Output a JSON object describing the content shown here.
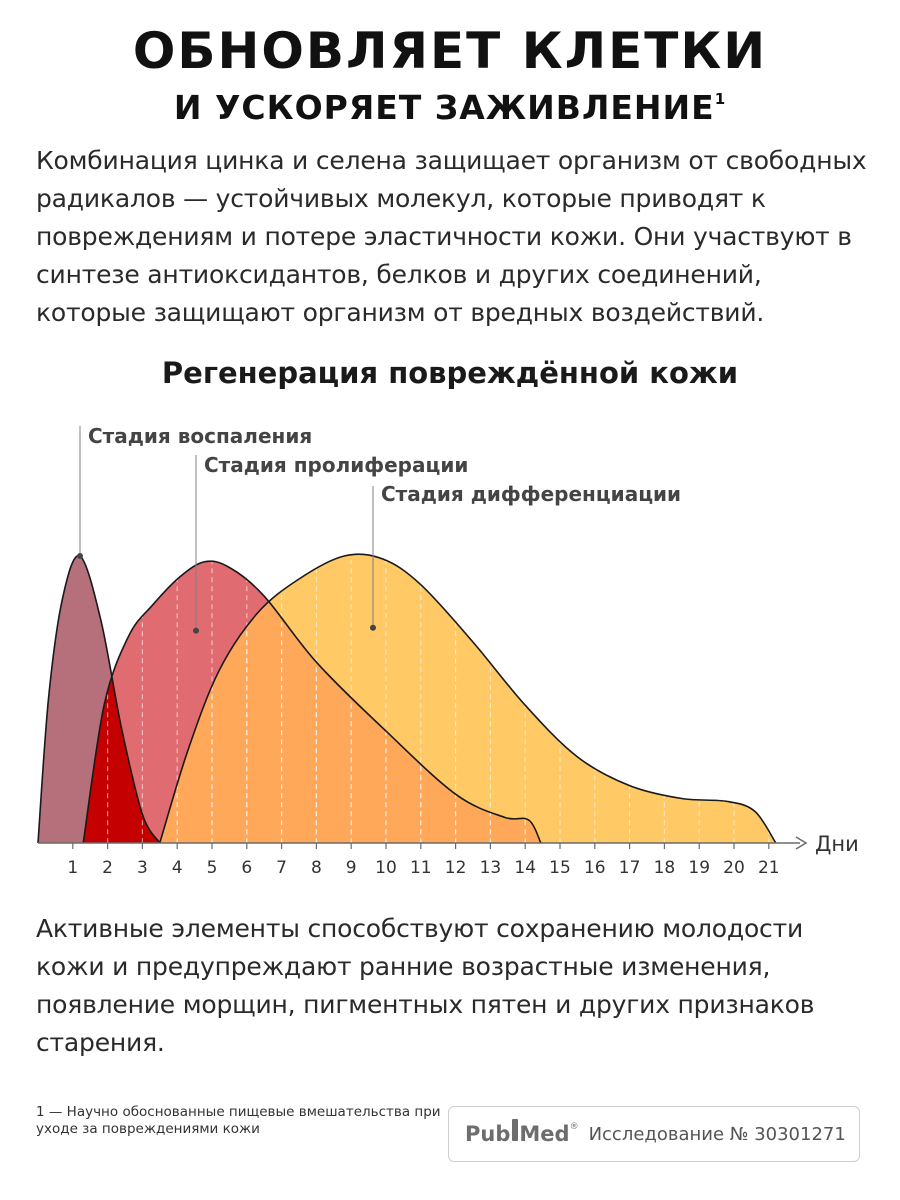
{
  "header": {
    "title_line1": "ОБНОВЛЯЕТ КЛЕТКИ",
    "title_line2": "И УСКОРЯЕТ ЗАЖИВЛЕНИЕ",
    "title_sup": "1"
  },
  "intro_text": "Комбинация цинка и селена защищает организм от свободных радикалов — устойчивых молекул, которые приводят к повреждениям и потере эластичности кожи. Они участвуют в синтезе антиоксидантов, белков и других соединений, которые защищают организм от вредных воздействий.",
  "chart_data": {
    "type": "area",
    "title": "Регенерация повреждённой кожи",
    "xlabel": "Дни",
    "ylabel": "",
    "x_ticks": [
      1,
      2,
      3,
      4,
      5,
      6,
      7,
      8,
      9,
      10,
      11,
      12,
      13,
      14,
      15,
      16,
      17,
      18,
      19,
      20,
      21
    ],
    "xlim": [
      0,
      21.5
    ],
    "ylim": [
      0,
      1
    ],
    "legend": "labels above curves",
    "series": [
      {
        "name": "Стадия воспаления",
        "color": "#b5707b",
        "overlap_color": "#c40000",
        "points": [
          [
            0,
            0
          ],
          [
            0.3,
            0.5
          ],
          [
            0.7,
            0.85
          ],
          [
            1.2,
            1.0
          ],
          [
            1.8,
            0.78
          ],
          [
            2.4,
            0.4
          ],
          [
            3.0,
            0.1
          ],
          [
            3.5,
            0
          ]
        ]
      },
      {
        "name": "Стадия пролиферации",
        "color": "#e06b70",
        "overlap_color": "#ffa85a",
        "points": [
          [
            1.3,
            0
          ],
          [
            1.9,
            0.48
          ],
          [
            2.6,
            0.72
          ],
          [
            3.3,
            0.83
          ],
          [
            4.1,
            0.93
          ],
          [
            4.8,
            0.98
          ],
          [
            5.5,
            0.96
          ],
          [
            6.5,
            0.86
          ],
          [
            8,
            0.63
          ],
          [
            10,
            0.39
          ],
          [
            12,
            0.17
          ],
          [
            13.4,
            0.09
          ],
          [
            14.1,
            0.08
          ],
          [
            14.45,
            0
          ]
        ]
      },
      {
        "name": "Стадия дифференциации",
        "color": "#ffc966",
        "points": [
          [
            3.5,
            0
          ],
          [
            4.3,
            0.32
          ],
          [
            5.2,
            0.6
          ],
          [
            6.3,
            0.8
          ],
          [
            7.5,
            0.92
          ],
          [
            8.8,
            1.0
          ],
          [
            9.9,
            0.99
          ],
          [
            11,
            0.9
          ],
          [
            12.5,
            0.7
          ],
          [
            14,
            0.48
          ],
          [
            15.5,
            0.3
          ],
          [
            17,
            0.2
          ],
          [
            18.5,
            0.155
          ],
          [
            19.8,
            0.145
          ],
          [
            20.6,
            0.11
          ],
          [
            21.2,
            0
          ]
        ]
      }
    ],
    "label_markers": [
      {
        "series": 0,
        "x": 1.2,
        "y": 1.0
      },
      {
        "series": 1,
        "x": 4.5,
        "y": 0.74
      },
      {
        "series": 2,
        "x": 9.5,
        "y": 0.75
      }
    ]
  },
  "outro_text": "Активные элементы способствуют сохранению молодости кожи и предупреждают ранние возрастные изменения, появление морщин, пигментных пятен и других признаков старения.",
  "footnote_text": "1 — Научно обоснованные пищевые вмешательства при уходе за повреждениями кожи",
  "source": {
    "logo_left": "Pub",
    "logo_right": "Med",
    "logo_reg": "®",
    "study_text": "Исследование № 30301271"
  }
}
